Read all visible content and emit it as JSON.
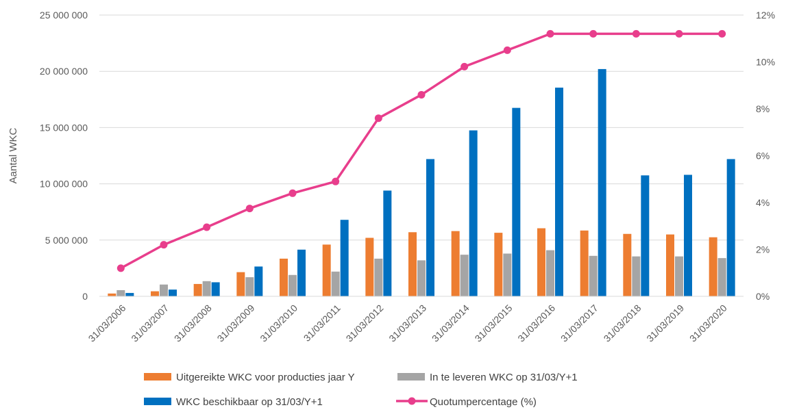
{
  "chart_data": {
    "type": "bar",
    "title": "",
    "ylabel": "Aantal WKC",
    "ylim": [
      0,
      25000000
    ],
    "y_ticks": [
      {
        "value": 0,
        "label": "0"
      },
      {
        "value": 5000000,
        "label": "5 000 000"
      },
      {
        "value": 10000000,
        "label": "10 000 000"
      },
      {
        "value": 15000000,
        "label": "15 000 000"
      },
      {
        "value": 20000000,
        "label": "20 000 000"
      },
      {
        "value": 25000000,
        "label": "25 000 000"
      }
    ],
    "y2lim": [
      0,
      12
    ],
    "y2_ticks": [
      {
        "value": 0,
        "label": "0%"
      },
      {
        "value": 2,
        "label": "2%"
      },
      {
        "value": 4,
        "label": "4%"
      },
      {
        "value": 6,
        "label": "6%"
      },
      {
        "value": 8,
        "label": "8%"
      },
      {
        "value": 10,
        "label": "10%"
      },
      {
        "value": 12,
        "label": "12%"
      }
    ],
    "grid": true,
    "legend_position": "bottom",
    "categories": [
      "31/03/2006",
      "31/03/2007",
      "31/03/2008",
      "31/03/2009",
      "31/03/2010",
      "31/03/2011",
      "31/03/2012",
      "31/03/2013",
      "31/03/2014",
      "31/03/2015",
      "31/03/2016",
      "31/03/2017",
      "31/03/2018",
      "31/03/2019",
      "31/03/2020"
    ],
    "series": [
      {
        "name": "Uitgereikte WKC voor producties jaar Y",
        "type": "bar",
        "axis": "left",
        "color": "#ED7D31",
        "values": [
          250000,
          450000,
          1100000,
          2150000,
          3350000,
          4600000,
          5200000,
          5700000,
          5800000,
          5650000,
          6050000,
          5850000,
          5550000,
          5500000,
          5250000
        ]
      },
      {
        "name": "In te leveren WKC op 31/03/Y+1",
        "type": "bar",
        "axis": "left",
        "color": "#A5A5A5",
        "values": [
          550000,
          1050000,
          1350000,
          1700000,
          1900000,
          2200000,
          3350000,
          3200000,
          3700000,
          3800000,
          4100000,
          3600000,
          3550000,
          3550000,
          3400000
        ]
      },
      {
        "name": "WKC beschikbaar op 31/03/Y+1",
        "type": "bar",
        "axis": "left",
        "color": "#0070C0",
        "values": [
          300000,
          600000,
          1250000,
          2650000,
          4150000,
          6800000,
          9400000,
          12200000,
          14750000,
          16750000,
          18550000,
          20200000,
          10750000,
          10800000,
          12200000
        ]
      },
      {
        "name": "Quotumpercentage (%)",
        "type": "line",
        "axis": "right",
        "color": "#E83E8C",
        "values": [
          1.2,
          2.2,
          2.95,
          3.75,
          4.4,
          4.9,
          7.6,
          8.6,
          9.8,
          10.5,
          11.2,
          11.2,
          11.2,
          11.2,
          11.2
        ]
      }
    ]
  }
}
